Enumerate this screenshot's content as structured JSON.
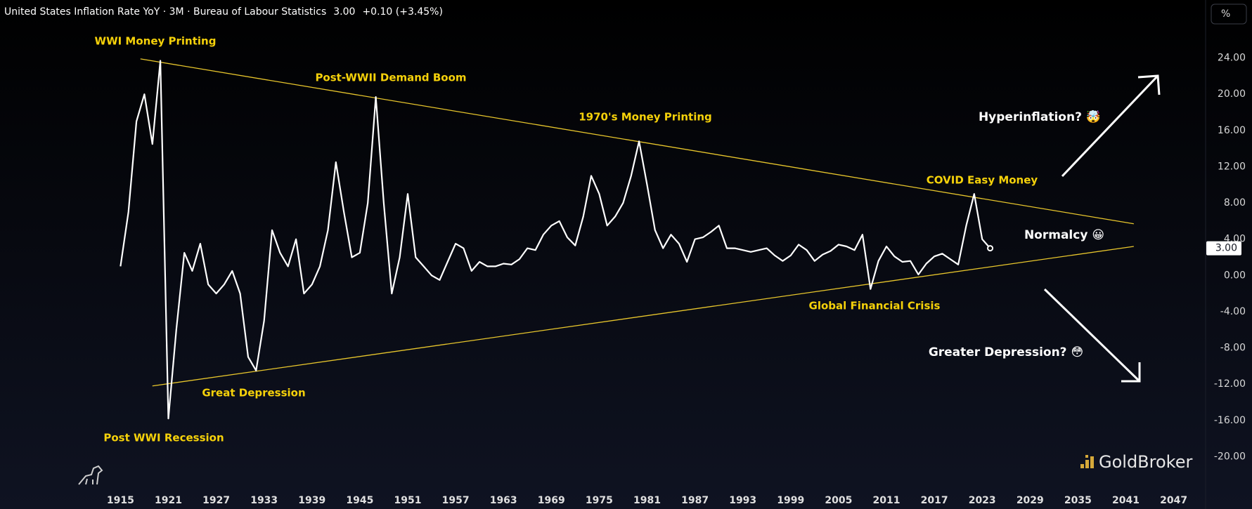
{
  "header": {
    "title": "United States Inflation Rate YoY · 3M · Bureau of Labour Statistics",
    "last": "3.00",
    "change": "+0.10 (+3.45%)",
    "unit_button": "%",
    "brand": "GoldBroker"
  },
  "chart_data": {
    "type": "line",
    "x": [
      1915,
      1916,
      1917,
      1918,
      1919,
      1920,
      1921,
      1922,
      1923,
      1924,
      1925,
      1926,
      1927,
      1928,
      1929,
      1930,
      1931,
      1932,
      1933,
      1934,
      1935,
      1936,
      1937,
      1938,
      1939,
      1940,
      1941,
      1942,
      1943,
      1944,
      1945,
      1946,
      1947,
      1948,
      1949,
      1950,
      1951,
      1952,
      1953,
      1954,
      1955,
      1956,
      1957,
      1958,
      1959,
      1960,
      1961,
      1962,
      1963,
      1964,
      1965,
      1966,
      1967,
      1968,
      1969,
      1970,
      1971,
      1972,
      1973,
      1974,
      1975,
      1976,
      1977,
      1978,
      1979,
      1980,
      1981,
      1982,
      1983,
      1984,
      1985,
      1986,
      1987,
      1988,
      1989,
      1990,
      1991,
      1992,
      1993,
      1994,
      1995,
      1996,
      1997,
      1998,
      1999,
      2000,
      2001,
      2002,
      2003,
      2004,
      2005,
      2006,
      2007,
      2008,
      2009,
      2010,
      2011,
      2012,
      2013,
      2014,
      2015,
      2016,
      2017,
      2018,
      2019,
      2020,
      2021,
      2022,
      2023,
      2024
    ],
    "series": [
      {
        "name": "United States Inflation Rate YoY",
        "color": "#ffffff",
        "values": [
          1.0,
          7.0,
          17,
          20,
          14.5,
          23.7,
          -15.8,
          -6,
          2.5,
          0.5,
          3.5,
          -1,
          -2,
          -1,
          0.5,
          -2,
          -9,
          -10.5,
          -5,
          5,
          2.5,
          1,
          4,
          -2,
          -1,
          1,
          5,
          12.5,
          7,
          2,
          2.5,
          8,
          19.7,
          8,
          -2,
          2,
          9,
          2,
          1,
          0,
          -0.5,
          1.5,
          3.5,
          3,
          0.5,
          1.5,
          1,
          1,
          1.3,
          1.2,
          1.8,
          3,
          2.8,
          4.5,
          5.5,
          6,
          4.2,
          3.3,
          6.5,
          11,
          9,
          5.5,
          6.5,
          8,
          11,
          14.8,
          10,
          5,
          3,
          4.5,
          3.5,
          1.5,
          4,
          4.2,
          4.8,
          5.5,
          3,
          3,
          2.8,
          2.6,
          2.8,
          3,
          2.2,
          1.6,
          2.2,
          3.4,
          2.8,
          1.6,
          2.3,
          2.7,
          3.4,
          3.2,
          2.8,
          4.5,
          -1.5,
          1.6,
          3.2,
          2.1,
          1.5,
          1.6,
          0.1,
          1.3,
          2.1,
          2.4,
          1.8,
          1.2,
          5.5,
          9.0,
          4.0,
          3.0
        ]
      }
    ],
    "trendlines": [
      {
        "color": "#e8c62c",
        "x": [
          1917.5,
          2042
        ],
        "y": [
          23.9,
          5.7
        ]
      },
      {
        "color": "#e8c62c",
        "x": [
          1919,
          2042
        ],
        "y": [
          -12.2,
          3.2
        ]
      }
    ],
    "annotations": [
      {
        "text": "WWI Money Printing",
        "color": "#f5d10a"
      },
      {
        "text": "Post-WWII Demand Boom",
        "color": "#f5d10a"
      },
      {
        "text": "1970's Money Printing",
        "color": "#f5d10a"
      },
      {
        "text": "COVID Easy Money",
        "color": "#f5d10a"
      },
      {
        "text": "Hyperinflation? 🤯",
        "color": "#ffffff"
      },
      {
        "text": "Normalcy 😀",
        "color": "#ffffff"
      },
      {
        "text": "Global Financial Crisis",
        "color": "#f5d10a"
      },
      {
        "text": "Greater Depression? 😳",
        "color": "#ffffff"
      },
      {
        "text": "Great Depression",
        "color": "#f5d10a"
      },
      {
        "text": "Post WWI Recession",
        "color": "#f5d10a"
      }
    ],
    "xlim": [
      1899.9,
      2051
    ],
    "xticks": [
      1915,
      1921,
      1927,
      1933,
      1939,
      1945,
      1951,
      1957,
      1963,
      1969,
      1975,
      1981,
      1987,
      1993,
      1999,
      2005,
      2011,
      2017,
      2023,
      2029,
      2035,
      2041,
      2047
    ],
    "ylim": [
      -23.3,
      30.4
    ],
    "yticks": [
      {
        "value": 24,
        "label": "24.00"
      },
      {
        "value": 20,
        "label": "20.00"
      },
      {
        "value": 16,
        "label": "16.00"
      },
      {
        "value": 12,
        "label": "12.00"
      },
      {
        "value": 8,
        "label": "8.00"
      },
      {
        "value": 4,
        "label": "4.00"
      },
      {
        "value": 0,
        "label": "0.00"
      },
      {
        "value": -4,
        "label": "-4.00"
      },
      {
        "value": -8,
        "label": "-8.00"
      },
      {
        "value": -12,
        "label": "-12.00"
      },
      {
        "value": -16,
        "label": "-16.00"
      },
      {
        "value": -20,
        "label": "-20.00"
      }
    ],
    "grid": false
  }
}
